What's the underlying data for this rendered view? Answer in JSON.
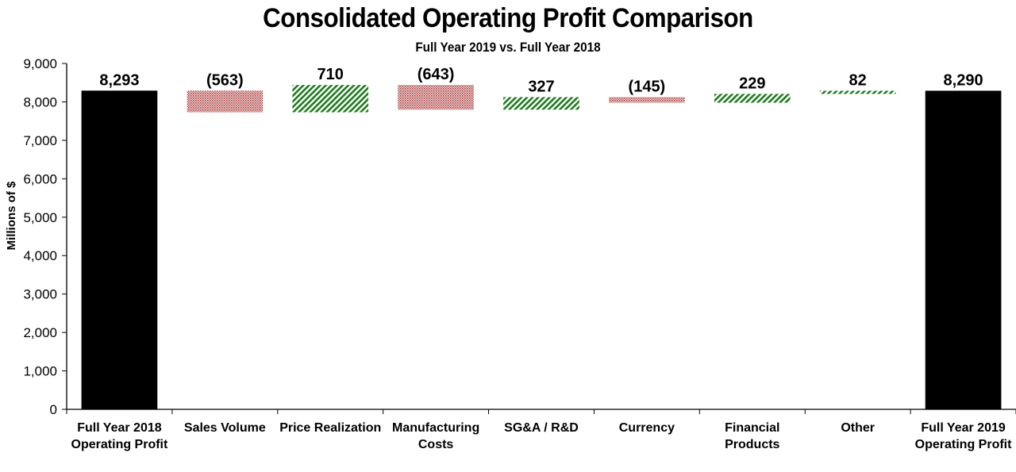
{
  "chart_data": {
    "type": "bar",
    "subtype": "waterfall",
    "title": "Consolidated Operating Profit Comparison",
    "subtitle": "Full Year 2019 vs. Full Year 2018",
    "xlabel": "",
    "ylabel": "Millions of $",
    "ylim": [
      0,
      9000
    ],
    "yticks": [
      0,
      1000,
      2000,
      3000,
      4000,
      5000,
      6000,
      7000,
      8000,
      9000
    ],
    "ytick_labels": [
      "0",
      "1,000",
      "2,000",
      "3,000",
      "4,000",
      "5,000",
      "6,000",
      "7,000",
      "8,000",
      "9,000"
    ],
    "grid": false,
    "legend": "none",
    "categories": [
      [
        "Full Year 2018",
        "Operating Profit"
      ],
      [
        "Sales Volume"
      ],
      [
        "Price Realization"
      ],
      [
        "Manufacturing",
        "Costs"
      ],
      [
        "SG&A / R&D"
      ],
      [
        "Currency"
      ],
      [
        "Financial",
        "Products"
      ],
      [
        "Other"
      ],
      [
        "Full Year 2019",
        "Operating Profit"
      ]
    ],
    "values": [
      8293,
      -563,
      710,
      -643,
      327,
      -145,
      229,
      82,
      8290
    ],
    "kinds": [
      "total",
      "delta",
      "delta",
      "delta",
      "delta",
      "delta",
      "delta",
      "delta",
      "total"
    ],
    "data_labels": [
      "8,293",
      "(563)",
      "710",
      "(643)",
      "327",
      "(145)",
      "229",
      "82",
      "8,290"
    ],
    "colors": {
      "total": "#000000",
      "increase": "#1f7a1f",
      "decrease": "#a03030"
    }
  }
}
